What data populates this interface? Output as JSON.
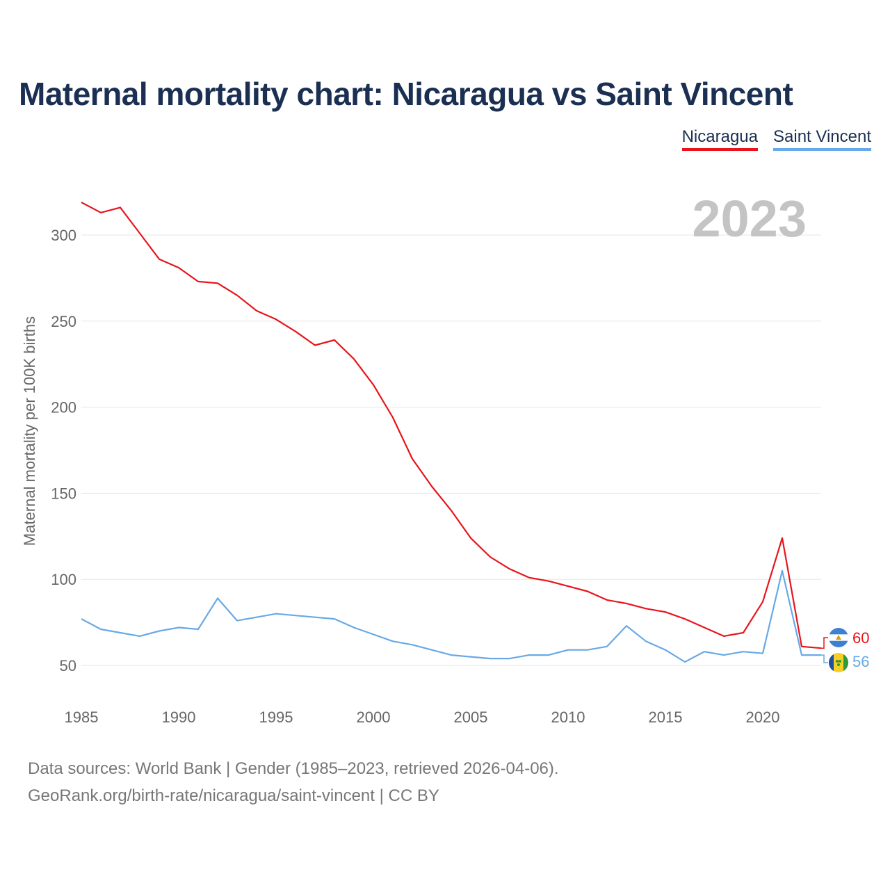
{
  "header": {
    "title": "Maternal mortality chart: Nicaragua vs Saint Vincent"
  },
  "legend": {
    "items": [
      {
        "label": "Nicaragua",
        "color": "#e8141b"
      },
      {
        "label": "Saint Vincent",
        "color": "#67a9e6"
      }
    ]
  },
  "footer": {
    "source_line1": "Data sources: World Bank | Gender (1985–2023, retrieved 2026-04-06).",
    "source_line2": "GeoRank.org/birth-rate/nicaragua/saint-vincent | CC BY"
  },
  "chart_data": {
    "type": "line",
    "title": "Maternal mortality chart: Nicaragua vs Saint Vincent",
    "xlabel": "",
    "ylabel": "Maternal mortality per 100K births",
    "year_marker": "2023",
    "xlim": [
      1985,
      2023
    ],
    "ylim": [
      35,
      330
    ],
    "x_ticks": [
      1985,
      1990,
      1995,
      2000,
      2005,
      2010,
      2015,
      2020
    ],
    "y_ticks": [
      50,
      100,
      150,
      200,
      250,
      300
    ],
    "grid": true,
    "x": [
      1985,
      1986,
      1987,
      1988,
      1989,
      1990,
      1991,
      1992,
      1993,
      1994,
      1995,
      1996,
      1997,
      1998,
      1999,
      2000,
      2001,
      2002,
      2003,
      2004,
      2005,
      2006,
      2007,
      2008,
      2009,
      2010,
      2011,
      2012,
      2013,
      2014,
      2015,
      2016,
      2017,
      2018,
      2019,
      2020,
      2021,
      2022,
      2023
    ],
    "series": [
      {
        "name": "Nicaragua",
        "color": "#e8141b",
        "end_label": "60",
        "values": [
          319,
          313,
          316,
          301,
          286,
          281,
          273,
          272,
          265,
          256,
          251,
          244,
          236,
          239,
          228,
          213,
          194,
          170,
          154,
          140,
          124,
          113,
          106,
          101,
          99,
          96,
          93,
          88,
          86,
          83,
          81,
          77,
          72,
          67,
          69,
          87,
          124,
          61,
          60
        ]
      },
      {
        "name": "Saint Vincent",
        "color": "#67a9e6",
        "end_label": "56",
        "values": [
          77,
          71,
          69,
          67,
          70,
          72,
          71,
          89,
          76,
          78,
          80,
          79,
          78,
          77,
          72,
          68,
          64,
          62,
          59,
          56,
          55,
          54,
          54,
          56,
          56,
          59,
          59,
          61,
          73,
          64,
          59,
          52,
          58,
          56,
          58,
          57,
          105,
          56,
          56
        ]
      }
    ]
  }
}
